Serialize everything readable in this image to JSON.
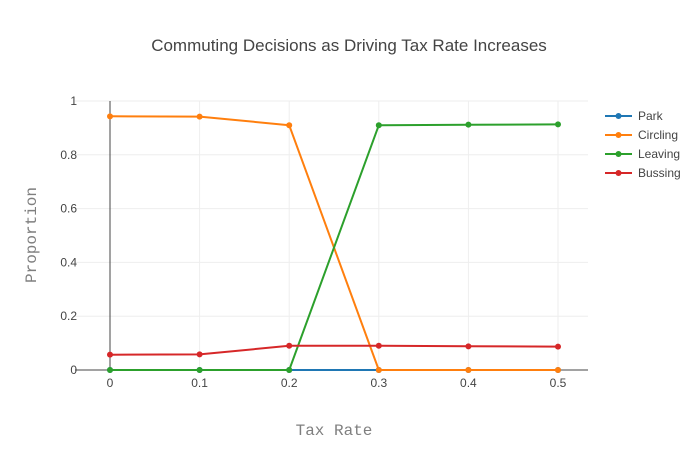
{
  "chart_data": {
    "type": "line",
    "title": "Commuting Decisions as Driving Tax Rate Increases",
    "xlabel": "Tax Rate",
    "ylabel": "Proportion",
    "x": [
      0,
      0.1,
      0.2,
      0.3,
      0.4,
      0.5
    ],
    "x_tick_labels": [
      "0",
      "0.1",
      "0.2",
      "0.3",
      "0.4",
      "0.5"
    ],
    "y_tick_labels": [
      "0",
      "0.2",
      "0.4",
      "0.6",
      "0.8",
      "1"
    ],
    "y_ticks": [
      0,
      0.2,
      0.4,
      0.6,
      0.8,
      1
    ],
    "xlim": [
      0,
      0.5
    ],
    "ylim": [
      0,
      1
    ],
    "grid": true,
    "legend_position": "top-right",
    "series": [
      {
        "name": "Park",
        "color": "#1f77b4",
        "values": [
          0,
          0,
          0,
          0,
          0,
          0
        ]
      },
      {
        "name": "Circling",
        "color": "#ff7f0e",
        "values": [
          0.943,
          0.942,
          0.91,
          0,
          0,
          0
        ]
      },
      {
        "name": "Leaving",
        "color": "#2ca02c",
        "values": [
          0,
          0,
          0,
          0.91,
          0.912,
          0.913
        ]
      },
      {
        "name": "Bussing",
        "color": "#d62728",
        "values": [
          0.057,
          0.058,
          0.09,
          0.09,
          0.088,
          0.087
        ]
      }
    ]
  }
}
